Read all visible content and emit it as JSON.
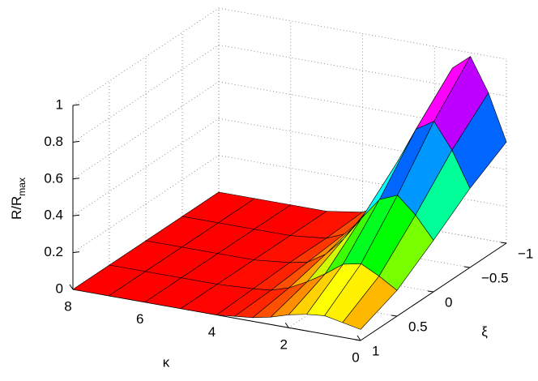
{
  "chart_data": {
    "type": "surface",
    "xlabel": "κ",
    "ylabel": "ξ",
    "zlabel": "R/R",
    "zlabel_sub": "max",
    "kappa": [
      0,
      0.5,
      1,
      1.5,
      2,
      2.5,
      3,
      3.5,
      4,
      5,
      6,
      7,
      8
    ],
    "xi": [
      -1,
      -0.5,
      0,
      0.5,
      1
    ],
    "z": [
      [
        0.55,
        0.8,
        0.98,
        0.9,
        0.65,
        0.4,
        0.2,
        0.08,
        0.03,
        0,
        0,
        0,
        0
      ],
      [
        0.43,
        0.62,
        0.76,
        0.7,
        0.51,
        0.31,
        0.16,
        0.06,
        0.02,
        0,
        0,
        0,
        0
      ],
      [
        0.28,
        0.4,
        0.49,
        0.45,
        0.33,
        0.2,
        0.1,
        0.04,
        0.02,
        0,
        0,
        0,
        0
      ],
      [
        0.14,
        0.2,
        0.25,
        0.23,
        0.16,
        0.1,
        0.05,
        0.02,
        0.01,
        0,
        0,
        0,
        0
      ],
      [
        0.06,
        0.08,
        0.1,
        0.09,
        0.07,
        0.04,
        0.02,
        0.01,
        0,
        0,
        0,
        0,
        0
      ]
    ],
    "xlim": [
      0,
      8
    ],
    "xticks": [
      0,
      2,
      4,
      6,
      8
    ],
    "ylim": [
      -1,
      1
    ],
    "yticks": [
      {
        "value": -1,
        "label": "−1"
      },
      {
        "value": -0.5,
        "label": "−0.5"
      },
      0,
      0.5,
      1
    ],
    "zlim": [
      0,
      1
    ],
    "zticks": [
      0,
      0.2,
      0.4,
      0.6,
      0.8,
      1
    ],
    "colormap": "hsv",
    "grid": true
  }
}
